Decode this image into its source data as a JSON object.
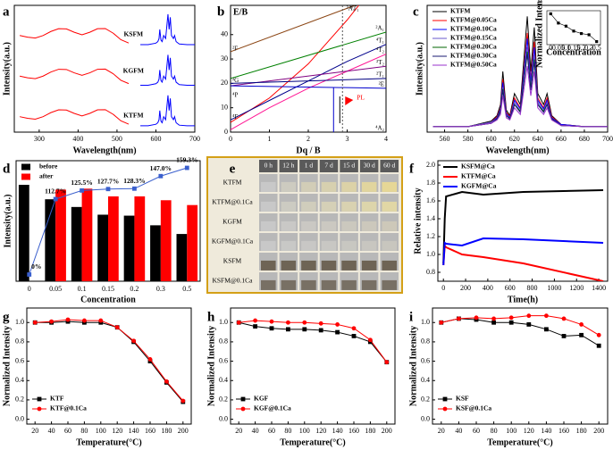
{
  "chart_data": [
    {
      "panel_label": "a",
      "type": "line",
      "xlabel": "Wavelength(nm)",
      "ylabel": "Intensity(a.u.)",
      "xlim": [
        236,
        700
      ],
      "ylim": [
        0,
        10
      ],
      "xticks": [
        300,
        400,
        500,
        600,
        700
      ],
      "sample_labels": [
        "KSFM",
        "KGFM",
        "KTFM"
      ],
      "series": [
        {
          "color": "#ff0000",
          "x": [
            250,
            270,
            290,
            310,
            330,
            350,
            370,
            390,
            410,
            430,
            450,
            470,
            490,
            510,
            530
          ],
          "values": [
            7.62,
            7.49,
            7.42,
            7.62,
            7.94,
            8.16,
            8.14,
            7.88,
            7.68,
            7.88,
            8.16,
            8.17,
            7.81,
            7.29,
            7.03
          ]
        },
        {
          "color": "#0000ff",
          "x": [
            560,
            580,
            600,
            605,
            608,
            610,
            613,
            616,
            620,
            625,
            628,
            631,
            634,
            637,
            640,
            645,
            648,
            652,
            660,
            680,
            700
          ],
          "values": [
            6.9,
            6.9,
            7.02,
            7.14,
            7.38,
            8.1,
            7.26,
            7.14,
            7.62,
            7.38,
            8.34,
            9.3,
            8.1,
            9.06,
            7.62,
            7.38,
            7.62,
            7.14,
            6.95,
            6.9,
            6.9
          ]
        },
        {
          "color": "#ff0000",
          "x": [
            250,
            270,
            290,
            310,
            330,
            350,
            370,
            390,
            410,
            430,
            450,
            470,
            490,
            510,
            530
          ],
          "values": [
            4.42,
            4.29,
            4.22,
            4.42,
            4.74,
            4.96,
            4.94,
            4.68,
            4.48,
            4.68,
            4.96,
            4.97,
            4.61,
            4.09,
            3.83
          ]
        },
        {
          "color": "#0000ff",
          "x": [
            560,
            580,
            600,
            605,
            608,
            610,
            613,
            616,
            620,
            625,
            628,
            631,
            634,
            637,
            640,
            645,
            648,
            652,
            660,
            680,
            700
          ],
          "values": [
            3.7,
            3.7,
            3.82,
            3.94,
            4.18,
            4.9,
            4.06,
            3.94,
            4.42,
            4.18,
            5.14,
            6.1,
            4.9,
            5.86,
            4.42,
            4.18,
            4.42,
            3.94,
            3.75,
            3.7,
            3.7
          ]
        },
        {
          "color": "#ff0000",
          "x": [
            250,
            270,
            290,
            310,
            330,
            350,
            370,
            390,
            410,
            430,
            450,
            470,
            490,
            510,
            530
          ],
          "values": [
            1.22,
            1.09,
            1.02,
            1.22,
            1.54,
            1.76,
            1.74,
            1.48,
            1.28,
            1.48,
            1.76,
            1.77,
            1.41,
            0.89,
            0.63
          ]
        },
        {
          "color": "#0000ff",
          "x": [
            560,
            580,
            600,
            605,
            608,
            610,
            613,
            616,
            620,
            625,
            628,
            631,
            634,
            637,
            640,
            645,
            648,
            652,
            660,
            680,
            700
          ],
          "values": [
            0.5,
            0.5,
            0.62,
            0.74,
            0.98,
            1.7,
            0.86,
            0.74,
            1.22,
            0.98,
            1.94,
            2.9,
            1.7,
            2.66,
            1.22,
            0.98,
            1.22,
            0.74,
            0.55,
            0.5,
            0.5
          ]
        }
      ]
    },
    {
      "panel_label": "b",
      "type": "line",
      "xlabel": "Dq / B",
      "ylabel": "E/B",
      "xlim": [
        0,
        4
      ],
      "ylim": [
        0,
        52
      ],
      "xticks": [
        0,
        1,
        2,
        3,
        4
      ],
      "yticks": [
        0,
        10,
        20,
        30,
        40
      ],
      "left_terms": [
        {
          "value": 33,
          "label": "²F"
        },
        {
          "value": 20,
          "label": "²G"
        },
        {
          "value": 14,
          "label": "⁴P"
        },
        {
          "value": 5,
          "label": "⁴F"
        }
      ],
      "annotations": [
        "PL"
      ],
      "series": [
        {
          "term": "²A₁",
          "color": "#8b4513",
          "x": [
            0,
            3.2
          ],
          "values": [
            33,
            52
          ]
        },
        {
          "term": "⁴T₁",
          "color": "#ff0000",
          "x": [
            0,
            1,
            2,
            3,
            3.3
          ],
          "values": [
            4,
            14,
            28,
            46,
            52
          ]
        },
        {
          "term": "²A₁",
          "color": "#008000",
          "x": [
            0,
            4
          ],
          "values": [
            22,
            41
          ]
        },
        {
          "term": "⁴T₁",
          "color": "#00008b",
          "x": [
            0,
            1,
            2,
            3,
            4
          ],
          "values": [
            5,
            13,
            21,
            29,
            36
          ]
        },
        {
          "term": "⁴T₂",
          "color": "#ff1493",
          "x": [
            0,
            1,
            2,
            3,
            4
          ],
          "values": [
            1,
            10,
            18,
            25,
            32
          ]
        },
        {
          "term": "²T₂",
          "color": "#800080",
          "x": [
            0,
            4
          ],
          "values": [
            19,
            27
          ]
        },
        {
          "term": "²T₁",
          "color": "#000080",
          "x": [
            0,
            4
          ],
          "values": [
            20,
            22
          ]
        },
        {
          "term": "²E",
          "color": "#0000cd",
          "x": [
            0,
            4
          ],
          "values": [
            19,
            18
          ]
        },
        {
          "term": "⁴A₂",
          "color": "#000000",
          "x": [
            0,
            4
          ],
          "values": [
            0,
            0
          ]
        }
      ]
    },
    {
      "panel_label": "c",
      "type": "line",
      "xlabel": "Wavelength(nm)",
      "ylabel": "Intensity(a.u.)",
      "xlim": [
        545,
        700
      ],
      "ylim": [
        -0.05,
        1.1
      ],
      "xticks": [
        560,
        580,
        600,
        620,
        640,
        660,
        680,
        700
      ],
      "legend": "upper-left",
      "x": [
        550,
        580,
        600,
        605,
        608,
        610,
        613,
        616,
        620,
        625,
        628,
        631,
        634,
        637,
        640,
        645,
        648,
        652,
        660,
        680,
        700
      ],
      "series": [
        {
          "name": "KTFM",
          "color": "#000000",
          "values": [
            0,
            0,
            0.05,
            0.1,
            0.2,
            0.5,
            0.15,
            0.1,
            0.3,
            0.2,
            0.6,
            1.0,
            0.5,
            0.9,
            0.3,
            0.2,
            0.3,
            0.1,
            0.02,
            0,
            0
          ]
        },
        {
          "name": "KTFM@0.05Ca",
          "color": "#ff0000",
          "values": [
            0,
            0,
            0.04,
            0.09,
            0.17,
            0.43,
            0.13,
            0.09,
            0.26,
            0.17,
            0.51,
            0.85,
            0.43,
            0.77,
            0.26,
            0.17,
            0.26,
            0.09,
            0.02,
            0,
            0
          ]
        },
        {
          "name": "KTFM@0.10Ca",
          "color": "#0000ff",
          "values": [
            0,
            0,
            0.04,
            0.08,
            0.16,
            0.4,
            0.12,
            0.08,
            0.24,
            0.16,
            0.48,
            0.8,
            0.4,
            0.72,
            0.24,
            0.16,
            0.24,
            0.08,
            0.02,
            0,
            0
          ]
        },
        {
          "name": "KTFM@0.15Ca",
          "color": "#6a5acd",
          "values": [
            0,
            0,
            0.04,
            0.07,
            0.14,
            0.36,
            0.11,
            0.07,
            0.22,
            0.14,
            0.43,
            0.72,
            0.36,
            0.65,
            0.22,
            0.14,
            0.22,
            0.07,
            0.01,
            0,
            0
          ]
        },
        {
          "name": "KTFM@0.20Ca",
          "color": "#006400",
          "values": [
            0,
            0,
            0.03,
            0.07,
            0.14,
            0.34,
            0.1,
            0.07,
            0.2,
            0.14,
            0.41,
            0.68,
            0.34,
            0.61,
            0.2,
            0.14,
            0.2,
            0.07,
            0.01,
            0,
            0
          ]
        },
        {
          "name": "KTFM@0.30Ca",
          "color": "#191970",
          "values": [
            0,
            0,
            0.03,
            0.07,
            0.13,
            0.33,
            0.1,
            0.07,
            0.2,
            0.13,
            0.4,
            0.66,
            0.33,
            0.59,
            0.2,
            0.13,
            0.2,
            0.07,
            0.01,
            0,
            0
          ]
        },
        {
          "name": "KTFM@0.50Ca",
          "color": "#9932cc",
          "values": [
            0,
            0,
            0.03,
            0.06,
            0.11,
            0.28,
            0.08,
            0.06,
            0.17,
            0.11,
            0.33,
            0.55,
            0.28,
            0.5,
            0.17,
            0.11,
            0.17,
            0.06,
            0.01,
            0,
            0
          ]
        }
      ]
    },
    {
      "type": "line",
      "xlabel": "Concentration",
      "ylabel": "Normalized Intensity",
      "ylim": [
        0.5,
        1.05
      ],
      "categories": [
        "0",
        "0.05",
        "0.1",
        "0.15",
        "0.2",
        "0.3",
        "0.5"
      ],
      "series": [
        {
          "color": "#000000",
          "marker": "square",
          "values": [
            1.0,
            0.85,
            0.8,
            0.72,
            0.68,
            0.66,
            0.55
          ]
        }
      ]
    },
    {
      "panel_label": "d",
      "type": "bar",
      "xlabel": "Concentration",
      "ylabel": "Intensity(a.u.)",
      "ylim": [
        0,
        1.25
      ],
      "y2lim": [
        -10,
        170
      ],
      "legend": "upper-left",
      "categories": [
        "0",
        "0.05",
        "0.1",
        "0.15",
        "0.2",
        "0.3",
        "0.5"
      ],
      "series": [
        {
          "name": "before",
          "color": "#000000",
          "values": [
            1.0,
            0.85,
            0.77,
            0.69,
            0.68,
            0.58,
            0.49
          ]
        },
        {
          "name": "after",
          "color": "#ff0000",
          "values": [
            null,
            0.95,
            0.96,
            0.88,
            0.88,
            0.84,
            0.79
          ]
        },
        {
          "type": "line",
          "axis": "y2",
          "color": "#3a5fcd",
          "marker": "square",
          "values": [
            0,
            112.7,
            125.5,
            127.7,
            128.3,
            147.0,
            159.3
          ],
          "value_labels": [
            "0%",
            "112.7%",
            "125.5%",
            "127.7%",
            "128.3%",
            "147.0%",
            "159.3%"
          ]
        }
      ]
    },
    {
      "panel_label": "f",
      "type": "line",
      "xlabel": "Time(h)",
      "ylabel": "Relative intensity",
      "xlim": [
        -50,
        1480
      ],
      "ylim": [
        0.7,
        2.05
      ],
      "xticks": [
        0,
        200,
        400,
        600,
        800,
        1000,
        1200,
        1400
      ],
      "yticks": [
        0.8,
        {
          "value": 1,
          "label": "1.0"
        },
        1.2,
        1.4,
        1.6,
        1.8,
        {
          "value": 2,
          "label": "2.0"
        }
      ],
      "legend": "upper-left",
      "x": [
        0,
        12,
        24,
        168,
        360,
        720,
        1440
      ],
      "series": [
        {
          "name": "KSFM@Ca",
          "color": "#000000",
          "width": 2,
          "values": [
            0.9,
            1.4,
            1.65,
            1.7,
            1.67,
            1.7,
            1.72
          ]
        },
        {
          "name": "KTFM@Ca",
          "color": "#ff0000",
          "width": 2,
          "values": [
            0.88,
            1.1,
            1.08,
            1.0,
            0.97,
            0.9,
            0.7
          ]
        },
        {
          "name": "KGFM@Ca",
          "color": "#0000ff",
          "width": 2,
          "values": [
            0.88,
            1.13,
            1.12,
            1.1,
            1.18,
            1.17,
            1.13
          ]
        }
      ]
    },
    {
      "panel_label": "g",
      "type": "line",
      "xlabel": "Temperature(°C)",
      "ylabel": "Normalized Intensity",
      "xlim": [
        10,
        210
      ],
      "ylim": [
        -0.05,
        1.15
      ],
      "xticks": [
        20,
        40,
        60,
        80,
        100,
        120,
        140,
        160,
        180,
        200
      ],
      "yticks": [
        {
          "value": 0,
          "label": "0.0"
        },
        0.2,
        0.4,
        0.6,
        0.8,
        {
          "value": 1,
          "label": "1.0"
        }
      ],
      "legend": "lower-left",
      "x": [
        20,
        40,
        60,
        80,
        100,
        120,
        140,
        160,
        180,
        200
      ],
      "series": [
        {
          "name": "KTF",
          "color": "#000000",
          "marker": "square",
          "values": [
            1.0,
            1.0,
            1.01,
            1.0,
            1.0,
            0.95,
            0.8,
            0.6,
            0.38,
            0.18
          ]
        },
        {
          "name": "KTF@0.1Ca",
          "color": "#ff0000",
          "marker": "circle",
          "values": [
            1.0,
            1.01,
            1.03,
            1.02,
            1.02,
            0.95,
            0.81,
            0.62,
            0.39,
            0.19
          ]
        }
      ]
    },
    {
      "panel_label": "h",
      "type": "line",
      "xlabel": "Temperature(°C)",
      "ylabel": "Normalized Intensity",
      "xlim": [
        10,
        210
      ],
      "ylim": [
        -0.05,
        1.15
      ],
      "xticks": [
        20,
        40,
        60,
        80,
        100,
        120,
        140,
        160,
        180,
        200
      ],
      "yticks": [
        {
          "value": 0,
          "label": "0.0"
        },
        0.2,
        0.4,
        0.6,
        0.8,
        {
          "value": 1,
          "label": "1.0"
        }
      ],
      "legend": "lower-left",
      "x": [
        20,
        40,
        60,
        80,
        100,
        120,
        140,
        160,
        180,
        200
      ],
      "series": [
        {
          "name": "KGF",
          "color": "#000000",
          "marker": "square",
          "values": [
            1.0,
            0.96,
            0.94,
            0.93,
            0.93,
            0.92,
            0.9,
            0.86,
            0.8,
            0.59
          ]
        },
        {
          "name": "KGF@0.1Ca",
          "color": "#ff0000",
          "marker": "circle",
          "values": [
            1.0,
            1.02,
            1.01,
            1.0,
            1.0,
            0.99,
            0.98,
            0.94,
            0.82,
            0.59
          ]
        }
      ]
    },
    {
      "panel_label": "i",
      "type": "line",
      "xlabel": "Temperature(°C)",
      "ylabel": "Normalized Intensity",
      "xlim": [
        10,
        210
      ],
      "ylim": [
        -0.05,
        1.15
      ],
      "xticks": [
        20,
        40,
        60,
        80,
        100,
        120,
        140,
        160,
        180,
        200
      ],
      "yticks": [
        {
          "value": 0,
          "label": "0.0"
        },
        0.2,
        0.4,
        0.6,
        0.8,
        {
          "value": 1,
          "label": "1.0"
        }
      ],
      "legend": "lower-left",
      "x": [
        20,
        40,
        60,
        80,
        100,
        120,
        140,
        160,
        180,
        200
      ],
      "series": [
        {
          "name": "KSF",
          "color": "#000000",
          "marker": "square",
          "values": [
            1.0,
            1.04,
            1.03,
            1.0,
            1.0,
            0.98,
            0.93,
            0.86,
            0.87,
            0.76
          ]
        },
        {
          "name": "KSF@0.1Ca",
          "color": "#ff0000",
          "marker": "circle",
          "values": [
            1.0,
            1.04,
            1.05,
            1.04,
            1.05,
            1.07,
            1.07,
            1.04,
            0.98,
            0.87
          ]
        }
      ]
    }
  ],
  "photo_panel": {
    "panel_label": "e",
    "columns": [
      "0 h",
      "12 h",
      "1 d",
      "7 d",
      "15 d",
      "30 d",
      "60 d"
    ],
    "rows": [
      "KTFM",
      "KTFM@0.1Ca",
      "KGFM",
      "KGFM@0.1Ca",
      "KSFM",
      "KSFM@0.1Ca"
    ]
  }
}
